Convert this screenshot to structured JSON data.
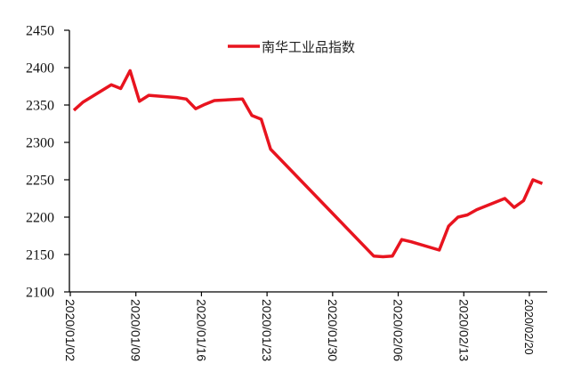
{
  "chart_data": {
    "type": "line",
    "title": "",
    "xlabel": "",
    "ylabel": "",
    "ylim": [
      2100,
      2450
    ],
    "yticks": [
      2100,
      2150,
      2200,
      2250,
      2300,
      2350,
      2400,
      2450
    ],
    "xtick_labels": [
      "2020/01/02",
      "2020/01/09",
      "2020/01/16",
      "2020/01/23",
      "2020/01/30",
      "2020/02/06",
      "2020/02/13",
      "2020/02/20"
    ],
    "grid": false,
    "legend_position": "top-center",
    "series": [
      {
        "name": "南华工业品指数",
        "color": "#e8141f",
        "x": [
          "2020/01/02",
          "2020/01/03",
          "2020/01/06",
          "2020/01/07",
          "2020/01/08",
          "2020/01/09",
          "2020/01/10",
          "2020/01/13",
          "2020/01/14",
          "2020/01/15",
          "2020/01/16",
          "2020/01/17",
          "2020/01/20",
          "2020/01/21",
          "2020/01/22",
          "2020/01/23",
          "2020/02/03",
          "2020/02/04",
          "2020/02/05",
          "2020/02/06",
          "2020/02/07",
          "2020/02/10",
          "2020/02/11",
          "2020/02/12",
          "2020/02/13",
          "2020/02/14",
          "2020/02/17",
          "2020/02/18",
          "2020/02/19",
          "2020/02/20",
          "2020/02/21"
        ],
        "values": [
          2343,
          2354,
          2377,
          2372,
          2396,
          2355,
          2363,
          2360,
          2358,
          2345,
          2351,
          2356,
          2358,
          2336,
          2331,
          2291,
          2148,
          2147,
          2148,
          2170,
          2167,
          2156,
          2188,
          2200,
          2203,
          2210,
          2225,
          2213,
          2222,
          2250,
          2245
        ]
      }
    ]
  },
  "legend": {
    "label": "南华工业品指数"
  }
}
